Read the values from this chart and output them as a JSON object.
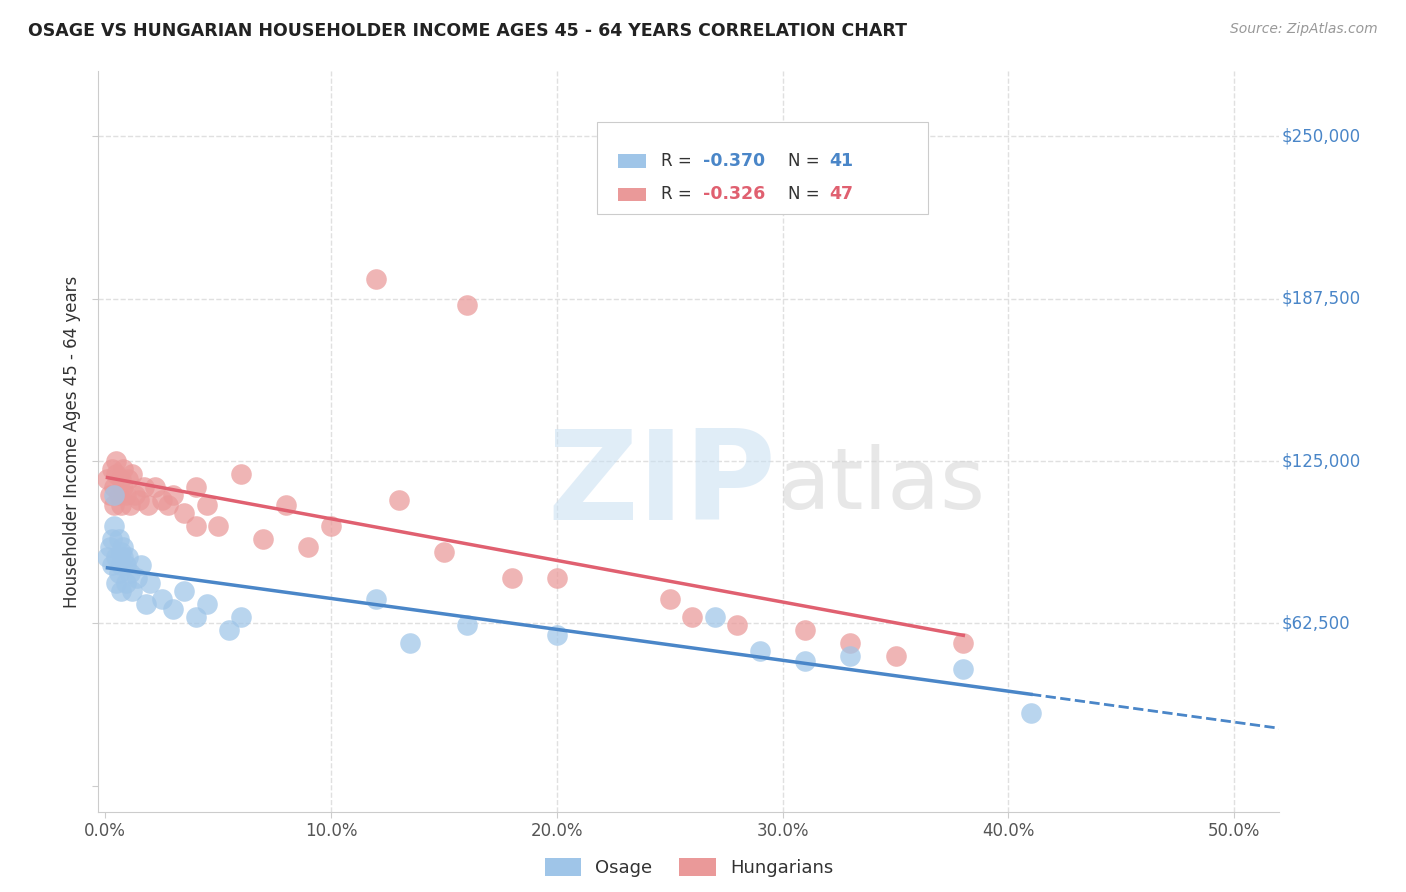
{
  "title": "OSAGE VS HUNGARIAN HOUSEHOLDER INCOME AGES 45 - 64 YEARS CORRELATION CHART",
  "source": "Source: ZipAtlas.com",
  "ylabel": "Householder Income Ages 45 - 64 years",
  "ytick_vals": [
    0,
    62500,
    125000,
    187500,
    250000
  ],
  "ytick_labels": [
    "",
    "$62,500",
    "$125,000",
    "$187,500",
    "$250,000"
  ],
  "xtick_vals": [
    0.0,
    0.1,
    0.2,
    0.3,
    0.4,
    0.5
  ],
  "xtick_labels": [
    "0.0%",
    "10.0%",
    "20.0%",
    "30.0%",
    "40.0%",
    "50.0%"
  ],
  "xlim": [
    -0.003,
    0.52
  ],
  "ylim": [
    -10000,
    275000
  ],
  "color_blue": "#9fc5e8",
  "color_pink": "#ea9999",
  "color_blue_line": "#4a86c8",
  "color_pink_line": "#e06070",
  "color_blue_text": "#4a86c8",
  "color_pink_text": "#e06070",
  "background_color": "#ffffff",
  "grid_color": "#e0e0e0",
  "osage_x": [
    0.001,
    0.002,
    0.003,
    0.003,
    0.004,
    0.004,
    0.005,
    0.005,
    0.006,
    0.006,
    0.007,
    0.007,
    0.007,
    0.008,
    0.008,
    0.009,
    0.009,
    0.01,
    0.011,
    0.012,
    0.014,
    0.016,
    0.018,
    0.02,
    0.025,
    0.03,
    0.035,
    0.04,
    0.045,
    0.055,
    0.06,
    0.12,
    0.135,
    0.16,
    0.2,
    0.27,
    0.29,
    0.31,
    0.33,
    0.38,
    0.41
  ],
  "osage_y": [
    88000,
    92000,
    95000,
    85000,
    100000,
    112000,
    88000,
    78000,
    95000,
    82000,
    90000,
    85000,
    75000,
    88000,
    92000,
    85000,
    78000,
    88000,
    82000,
    75000,
    80000,
    85000,
    70000,
    78000,
    72000,
    68000,
    75000,
    65000,
    70000,
    60000,
    65000,
    72000,
    55000,
    62000,
    58000,
    65000,
    52000,
    48000,
    50000,
    45000,
    28000
  ],
  "hungarian_x": [
    0.001,
    0.002,
    0.003,
    0.004,
    0.004,
    0.005,
    0.005,
    0.006,
    0.007,
    0.007,
    0.008,
    0.008,
    0.009,
    0.01,
    0.011,
    0.012,
    0.013,
    0.015,
    0.017,
    0.019,
    0.022,
    0.025,
    0.028,
    0.03,
    0.035,
    0.04,
    0.045,
    0.05,
    0.06,
    0.07,
    0.08,
    0.09,
    0.1,
    0.12,
    0.13,
    0.15,
    0.16,
    0.18,
    0.2,
    0.25,
    0.26,
    0.31,
    0.33,
    0.38,
    0.04,
    0.28,
    0.35
  ],
  "hungarian_y": [
    118000,
    112000,
    122000,
    108000,
    115000,
    120000,
    125000,
    112000,
    108000,
    118000,
    115000,
    122000,
    112000,
    118000,
    108000,
    120000,
    112000,
    110000,
    115000,
    108000,
    115000,
    110000,
    108000,
    112000,
    105000,
    115000,
    108000,
    100000,
    120000,
    95000,
    108000,
    92000,
    100000,
    195000,
    110000,
    90000,
    185000,
    80000,
    80000,
    72000,
    65000,
    60000,
    55000,
    55000,
    100000,
    62000,
    50000
  ]
}
